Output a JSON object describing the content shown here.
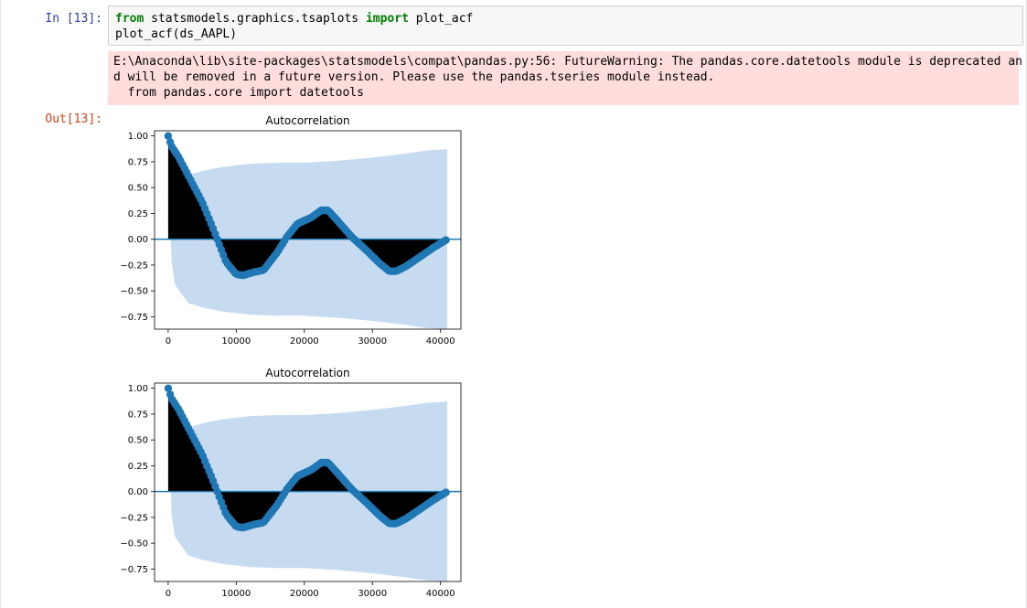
{
  "cell": {
    "in_prompt": "In [13]:",
    "out_prompt": "Out[13]:",
    "code_lines": [
      {
        "kw1": "from",
        "mod": " statsmodels.graphics.tsaplots ",
        "kw2": "import",
        "rest": " plot_acf"
      },
      {
        "text": "plot_acf(ds_AAPL)"
      }
    ],
    "stderr_lines": [
      "E:\\Anaconda\\lib\\site-packages\\statsmodels\\compat\\pandas.py:56: FutureWarning: The pandas.core.datetools module is deprecated an",
      "d will be removed in a future version. Please use the pandas.tseries module instead.",
      "  from pandas.core import datetools"
    ]
  },
  "chart_data": [
    {
      "type": "line",
      "title": "Autocorrelation",
      "xlabel": "",
      "ylabel": "",
      "xlim": [
        -2000,
        43000
      ],
      "ylim": [
        -0.87,
        1.05
      ],
      "xticks": [
        "0",
        "10000",
        "20000",
        "30000",
        "40000"
      ],
      "yticks": [
        "1.00",
        "0.75",
        "0.50",
        "0.25",
        "0.00",
        "−0.25",
        "−0.50",
        "−0.75"
      ],
      "grid": false,
      "series": [
        {
          "x": [
            0,
            500,
            1500,
            3000,
            5000,
            6500,
            8500,
            10000,
            11000,
            12500,
            14000,
            16000,
            17500,
            19000,
            21000,
            22500,
            23500,
            25000,
            27000,
            29000,
            31000,
            32500,
            33500,
            35000,
            37000,
            39000,
            41000
          ],
          "y": [
            1.0,
            0.9,
            0.8,
            0.61,
            0.36,
            0.12,
            -0.22,
            -0.34,
            -0.35,
            -0.32,
            -0.3,
            -0.13,
            0.03,
            0.15,
            0.21,
            0.28,
            0.28,
            0.17,
            0.02,
            -0.1,
            -0.23,
            -0.31,
            -0.31,
            -0.26,
            -0.17,
            -0.08,
            0.0
          ]
        },
        {
          "x": [
            0,
            1000,
            3000,
            5000,
            8000,
            12000,
            16000,
            20000,
            25000,
            30000,
            35000,
            38000,
            41000
          ],
          "y": [
            0.0,
            0.44,
            0.62,
            0.66,
            0.7,
            0.73,
            0.74,
            0.74,
            0.76,
            0.79,
            0.83,
            0.86,
            0.87
          ]
        }
      ],
      "colors": {
        "marker": "#1f77b4",
        "fill": "#000000",
        "band": "#c6dbef"
      }
    },
    {
      "type": "line",
      "title": "Autocorrelation",
      "xlabel": "",
      "ylabel": "",
      "xlim": [
        -2000,
        43000
      ],
      "ylim": [
        -0.87,
        1.05
      ],
      "xticks": [
        "0",
        "10000",
        "20000",
        "30000",
        "40000"
      ],
      "yticks": [
        "1.00",
        "0.75",
        "0.50",
        "0.25",
        "0.00",
        "−0.25",
        "−0.50",
        "−0.75"
      ],
      "grid": false,
      "series": [
        {
          "x": [
            0,
            500,
            1500,
            3000,
            5000,
            6500,
            8500,
            10000,
            11000,
            12500,
            14000,
            16000,
            17500,
            19000,
            21000,
            22500,
            23500,
            25000,
            27000,
            29000,
            31000,
            32500,
            33500,
            35000,
            37000,
            39000,
            41000
          ],
          "y": [
            1.0,
            0.9,
            0.8,
            0.61,
            0.36,
            0.12,
            -0.22,
            -0.34,
            -0.35,
            -0.32,
            -0.3,
            -0.13,
            0.03,
            0.15,
            0.21,
            0.28,
            0.28,
            0.17,
            0.02,
            -0.1,
            -0.23,
            -0.31,
            -0.31,
            -0.26,
            -0.17,
            -0.08,
            0.0
          ]
        },
        {
          "x": [
            0,
            1000,
            3000,
            5000,
            8000,
            12000,
            16000,
            20000,
            25000,
            30000,
            35000,
            38000,
            41000
          ],
          "y": [
            0.0,
            0.44,
            0.62,
            0.66,
            0.7,
            0.73,
            0.74,
            0.74,
            0.76,
            0.79,
            0.83,
            0.86,
            0.87
          ]
        }
      ],
      "colors": {
        "marker": "#1f77b4",
        "fill": "#000000",
        "band": "#c6dbef"
      }
    }
  ]
}
